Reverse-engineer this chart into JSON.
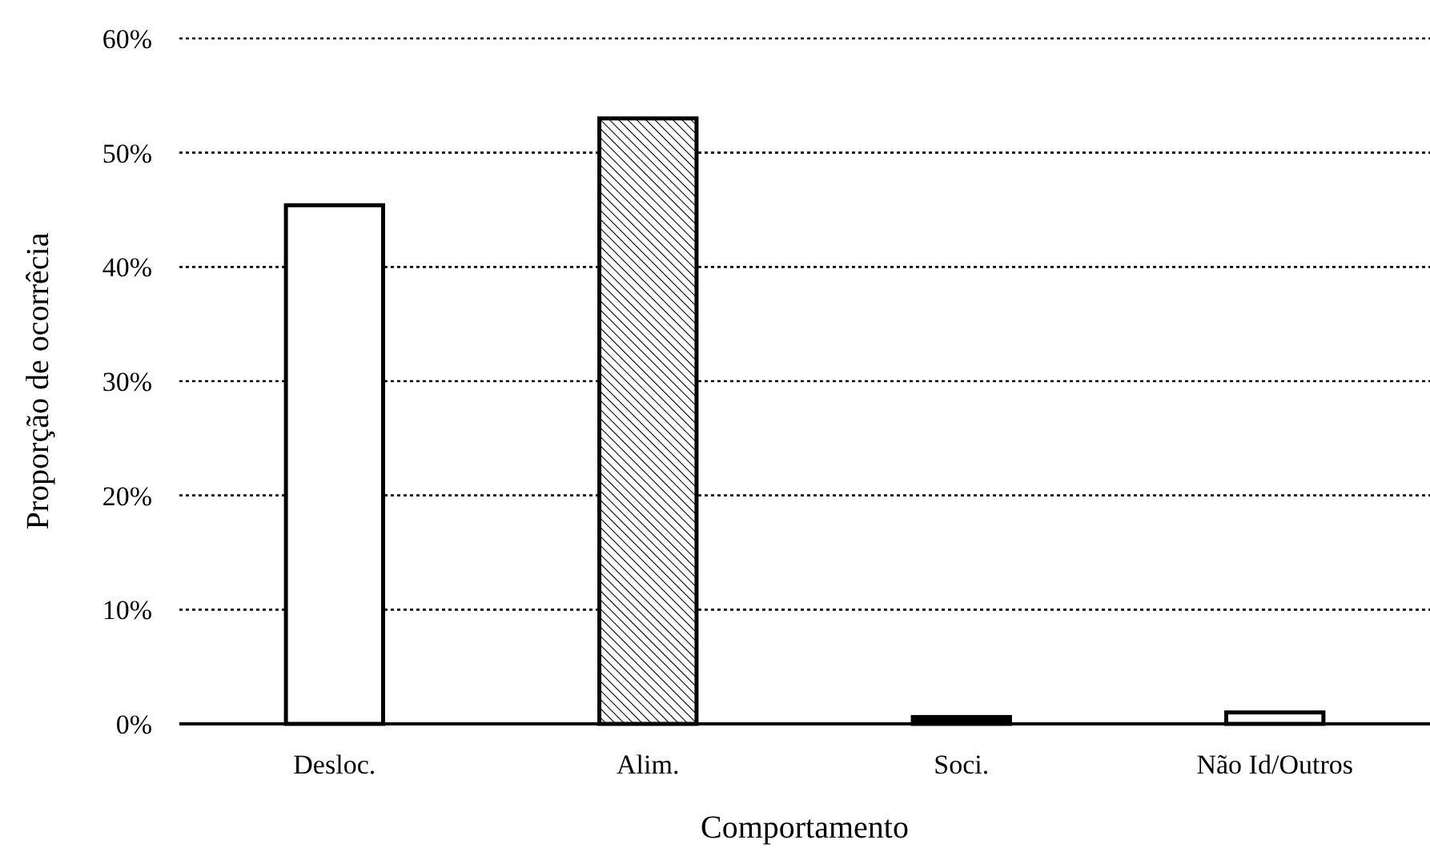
{
  "chart_data": {
    "type": "bar",
    "xlabel": "Comportamento",
    "ylabel": "Proporção de ocorrêcia",
    "categories": [
      "Desloc.",
      "Alim.",
      "Soci.",
      "Não Id/Outros"
    ],
    "values": [
      45.4,
      53.0,
      0.6,
      1.0
    ],
    "colors": [
      "#ffffff",
      "#000000",
      "#000000",
      "#ffffff"
    ],
    "ylim": [
      0,
      60
    ],
    "yticks": [
      {
        "value": 0,
        "label": "0%"
      },
      {
        "value": 10,
        "label": "10%"
      },
      {
        "value": 20,
        "label": "20%"
      },
      {
        "value": 30,
        "label": "30%"
      },
      {
        "value": 40,
        "label": "40%"
      },
      {
        "value": 50,
        "label": "50%"
      },
      {
        "value": 60,
        "label": "60%"
      }
    ],
    "grid": "y"
  }
}
